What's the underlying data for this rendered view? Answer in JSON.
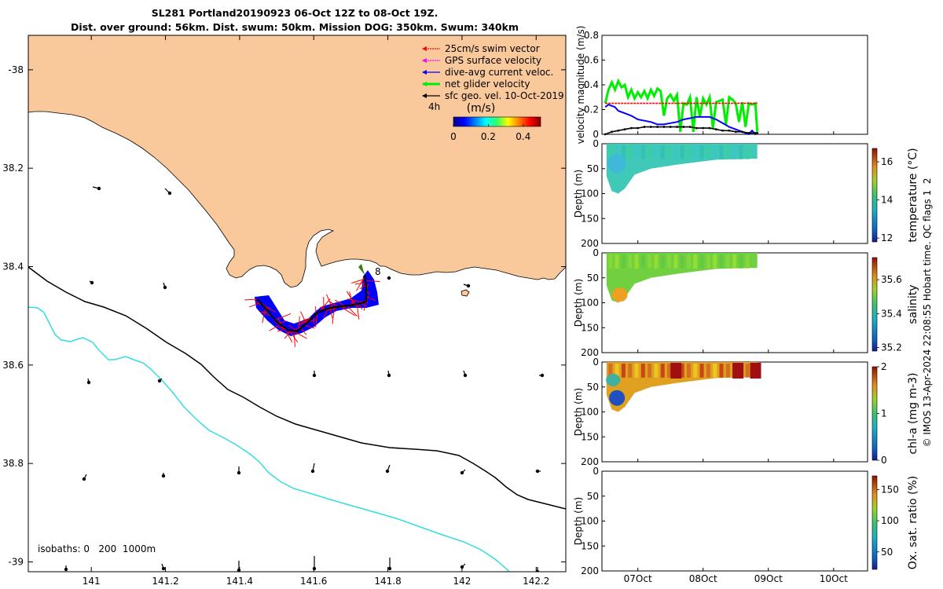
{
  "title_line1": "SL281 Portland20190923 06-Oct 12Z to 08-Oct 19Z.",
  "title_line2": "Dist. over ground: 56km. Dist. swum: 50km. Mission DOG: 350km. Swum: 340km",
  "copyright": "© IMOS 13-Apr-2024 22:08:55 Hobart time. QC flags 1  2",
  "chart_data": [
    {
      "type": "map",
      "x_ticks": [
        "141",
        "141.2",
        "141.4",
        "141.6",
        "141.8",
        "142",
        "142.2"
      ],
      "y_ticks": [
        "-38",
        "38.2",
        "38.4",
        "38.6",
        "38.8",
        "-39"
      ],
      "xlim": [
        140.83,
        142.28
      ],
      "ylim": [
        -39.02,
        -37.93
      ],
      "legend": [
        {
          "label": "25cm/s swim vector",
          "color": "#ff0000"
        },
        {
          "label": "GPS surface velocity",
          "color": "#ff00ff"
        },
        {
          "label": "dive-avg current veloc.",
          "color": "#0000ff"
        },
        {
          "label": "net glider velocity",
          "color": "#00ee00"
        },
        {
          "label": "sfc geo. vel. 10-Oct-2019",
          "color": "#000000"
        }
      ],
      "speed_colorbar": {
        "prefix": "4h",
        "units": "(m/s)",
        "ticks": [
          "0",
          "0.2",
          "0.4"
        ]
      },
      "track_label": "8",
      "isobaths_note": "isobaths: 0   200  1000m",
      "colors": {
        "land": "#f9c89b",
        "isobath_200": "#000000",
        "isobath_1000": "#33dde0",
        "track": "#0000ff",
        "swim": "#ff0000"
      }
    },
    {
      "type": "line",
      "ylabel": "velocity magnitude (m/s)",
      "ylim": [
        0,
        0.8
      ],
      "y_ticks": [
        "0",
        "0.2",
        "0.4",
        "0.6",
        "0.8"
      ],
      "x_ticks": [
        "07Oct",
        "08Oct",
        "09Oct",
        "10Oct"
      ],
      "series": [
        {
          "color": "#00ee00",
          "x": [
            6.5,
            6.55,
            6.6,
            6.65,
            6.7,
            6.75,
            6.8,
            6.85,
            6.9,
            6.95,
            7.0,
            7.05,
            7.1,
            7.15,
            7.2,
            7.25,
            7.3,
            7.35,
            7.4,
            7.45,
            7.5,
            7.55,
            7.6,
            7.65,
            7.7,
            7.75,
            7.8,
            7.85,
            7.9,
            7.95,
            8.0,
            8.05,
            8.1,
            8.15,
            8.2,
            8.25,
            8.3,
            8.35,
            8.4,
            8.45,
            8.5,
            8.55,
            8.6,
            8.65,
            8.7,
            8.75,
            8.8,
            8.83
          ],
          "values": [
            0.25,
            0.36,
            0.42,
            0.36,
            0.43,
            0.38,
            0.4,
            0.3,
            0.36,
            0.29,
            0.34,
            0.3,
            0.35,
            0.29,
            0.36,
            0.31,
            0.37,
            0.35,
            0.15,
            0.29,
            0.32,
            0.27,
            0.32,
            0.02,
            0.25,
            0.24,
            0.3,
            0.02,
            0.3,
            0.14,
            0.29,
            0.24,
            0.3,
            0.05,
            0.26,
            0.27,
            0.28,
            0.08,
            0.3,
            0.28,
            0.25,
            0.1,
            0.26,
            0.06,
            0.25,
            0.24,
            0.25,
            0.02
          ]
        },
        {
          "color": "#ff0000",
          "x": [
            6.5,
            6.6,
            6.7,
            6.8,
            6.9,
            7.0,
            7.1,
            7.2,
            7.3,
            7.4,
            7.5,
            7.6,
            7.7,
            7.8,
            7.9,
            8.0,
            8.1,
            8.2,
            8.3,
            8.4,
            8.5,
            8.6,
            8.7,
            8.8,
            8.83
          ],
          "values": [
            0.25,
            0.25,
            0.25,
            0.25,
            0.25,
            0.25,
            0.25,
            0.25,
            0.25,
            0.25,
            0.25,
            0.25,
            0.25,
            0.25,
            0.25,
            0.25,
            0.25,
            0.25,
            0.25,
            0.25,
            0.25,
            0.25,
            0.25,
            0.25,
            0.25
          ]
        },
        {
          "color": "#0000ff",
          "x": [
            6.5,
            6.55,
            6.6,
            6.65,
            6.7,
            6.8,
            6.9,
            7.0,
            7.1,
            7.2,
            7.3,
            7.4,
            7.5,
            7.6,
            7.7,
            7.8,
            7.9,
            8.0,
            8.1,
            8.2,
            8.3,
            8.4,
            8.5,
            8.6,
            8.65,
            8.7,
            8.75,
            8.8,
            8.83
          ],
          "values": [
            0.22,
            0.24,
            0.23,
            0.22,
            0.19,
            0.17,
            0.15,
            0.12,
            0.11,
            0.1,
            0.08,
            0.08,
            0.09,
            0.1,
            0.12,
            0.13,
            0.14,
            0.14,
            0.14,
            0.12,
            0.09,
            0.06,
            0.04,
            0.02,
            0.01,
            0.0,
            0.03,
            0.0,
            0.01
          ]
        },
        {
          "color": "#000000",
          "x": [
            6.5,
            6.6,
            6.7,
            6.8,
            6.9,
            7.0,
            7.1,
            7.2,
            7.3,
            7.4,
            7.5,
            7.6,
            7.7,
            7.8,
            7.9,
            8.0,
            8.1,
            8.2,
            8.3,
            8.4,
            8.5,
            8.6,
            8.7,
            8.8,
            8.83
          ],
          "values": [
            0.0,
            0.02,
            0.03,
            0.04,
            0.05,
            0.05,
            0.06,
            0.06,
            0.06,
            0.06,
            0.06,
            0.06,
            0.06,
            0.06,
            0.05,
            0.05,
            0.05,
            0.04,
            0.03,
            0.03,
            0.02,
            0.02,
            0.01,
            0.01,
            0.01
          ]
        }
      ]
    },
    {
      "type": "heatmap",
      "ylabel": "Depth (m)",
      "ylim": [
        200,
        0
      ],
      "y_ticks": [
        "0",
        "50",
        "100",
        "150",
        "200"
      ],
      "colorbar_label": "temperature (°C)",
      "colorbar_ticks": [
        "12",
        "14",
        "16"
      ],
      "clim": [
        11.8,
        16.7
      ],
      "description": "water temperature about 13.5-14.5 °C throughout the glider section"
    },
    {
      "type": "heatmap",
      "ylabel": "Depth (m)",
      "ylim": [
        200,
        0
      ],
      "y_ticks": [
        "0",
        "50",
        "100",
        "150",
        "200"
      ],
      "colorbar_label": "salinity",
      "colorbar_ticks": [
        "35.2",
        "35.4",
        "35.6"
      ],
      "clim": [
        35.18,
        35.73
      ],
      "description": "salinity about 35.45-35.55, higher near the bottom early in the mission"
    },
    {
      "type": "heatmap",
      "ylabel": "Depth (m)",
      "ylim": [
        200,
        0
      ],
      "y_ticks": [
        "0",
        "50",
        "100",
        "150",
        "200"
      ],
      "colorbar_label": "chl-a (mg m-3)",
      "colorbar_ticks": [
        "0",
        "1",
        "2"
      ],
      "clim": [
        0,
        2
      ],
      "description": "chlorophyll high (1.5-2) near surface after 07Oct, low at depth early on"
    },
    {
      "type": "heatmap",
      "ylabel": "Depth (m)",
      "ylim": [
        200,
        0
      ],
      "y_ticks": [
        "0",
        "50",
        "100",
        "150",
        "200"
      ],
      "x_ticks": [
        "07Oct",
        "08Oct",
        "09Oct",
        "10Oct"
      ],
      "colorbar_label": "Ox. sat. ratio (%)",
      "colorbar_ticks": [
        "50",
        "100",
        "150"
      ],
      "clim": [
        22,
        172
      ],
      "description": "no data plotted"
    }
  ]
}
